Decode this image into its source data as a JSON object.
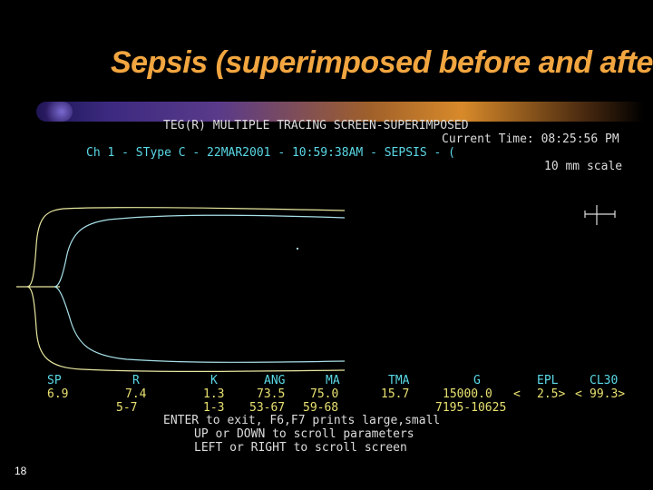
{
  "slide": {
    "title": "Sepsis (superimposed before and after)",
    "number": "18"
  },
  "screen": {
    "header": "TEG(R) MULTIPLE TRACING SCREEN-SUPERIMPOSED",
    "current_time": "Current Time: 08:25:56 PM",
    "channel_info": "Ch 1 - SType C - 22MAR2001 - 10:59:38AM - SEPSIS - (",
    "scale": "10 mm scale",
    "params": {
      "labels": [
        "SP",
        "R",
        "K",
        "ANG",
        "MA",
        "TMA",
        "G",
        "EPL",
        "CL30"
      ],
      "values": [
        "6.9",
        "7.4",
        "1.3",
        "73.5",
        "75.0",
        "15.7",
        "15000.0",
        "<",
        "2.5>",
        "<",
        "99.3>"
      ],
      "ranges": [
        "5-7",
        "1-3",
        "53-67",
        "59-68",
        "7195-10625"
      ]
    },
    "instructions": {
      "line1": "ENTER to exit, F6,F7 prints large,small",
      "line2": "UP or DOWN to scroll parameters",
      "line3": "LEFT or RIGHT to scroll screen"
    }
  },
  "colors": {
    "title": "#f2a640",
    "trace_before": "#e8e8a0",
    "trace_after": "#a8e0e8",
    "text_cyan": "#5ad8e6",
    "text_white": "#dcdcdc",
    "text_yellow": "#e8e070"
  }
}
